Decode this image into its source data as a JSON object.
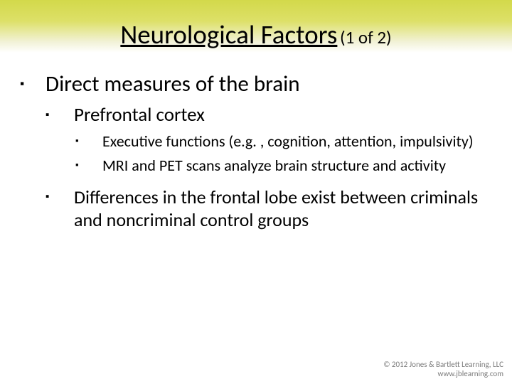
{
  "title": {
    "main": "Neurological Factors",
    "suffix": "(1 of 2)"
  },
  "bullet_glyph": "▪",
  "content": {
    "level1": "Direct measures of the brain",
    "level2a": "Prefrontal cortex",
    "level3a": "Executive functions (e.g. , cognition, attention, impulsivity)",
    "level3b": "MRI and PET scans analyze brain structure and activity",
    "level2b": "Differences in the frontal lobe exist between criminals and noncriminal control groups"
  },
  "footer": {
    "copyright": "© 2012 Jones & Bartlett Learning, LLC",
    "url": "www.jblearning.com"
  },
  "colors": {
    "band_top": "#d3d94a",
    "band_bottom": "#ffffff",
    "text": "#000000",
    "footer_text": "#7a7a7a"
  }
}
